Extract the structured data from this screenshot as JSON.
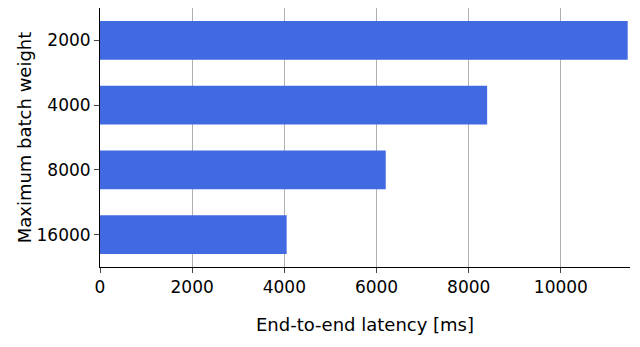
{
  "chart_data": {
    "type": "bar",
    "orientation": "horizontal",
    "categories": [
      "2000",
      "4000",
      "8000",
      "16000"
    ],
    "values": [
      11450,
      8400,
      6200,
      4050
    ],
    "color": "#4169e1",
    "xlabel": "End-to-end latency [ms]",
    "ylabel": "Maximum batch weight",
    "xlim": [
      0,
      11500
    ],
    "xticks": [
      0,
      2000,
      4000,
      6000,
      8000,
      10000
    ],
    "grid": true
  }
}
